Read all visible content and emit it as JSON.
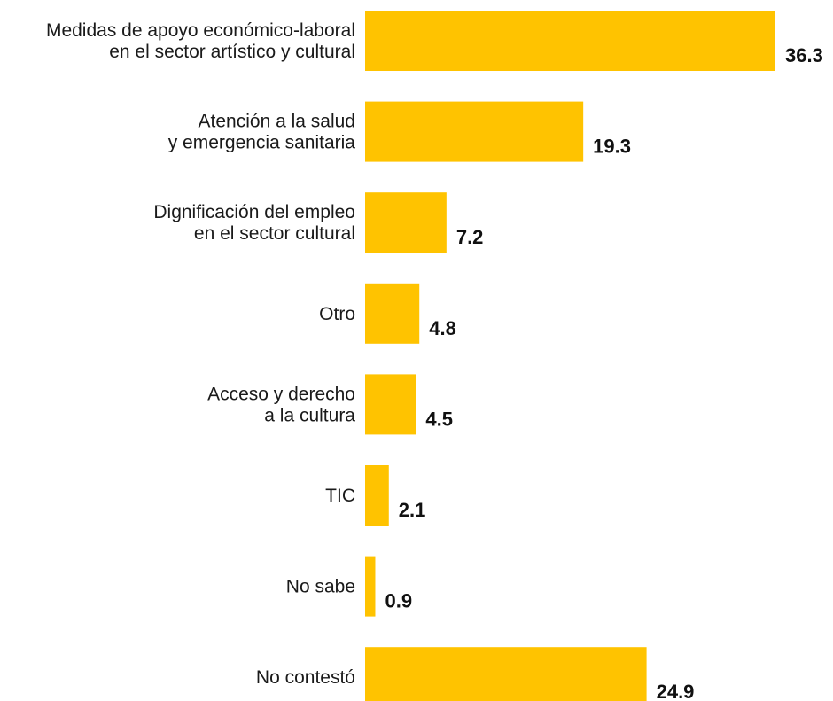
{
  "chart_data": {
    "type": "bar",
    "orientation": "horizontal",
    "categories": [
      [
        "Medidas de apoyo económico-laboral",
        "en el sector artístico y cultural"
      ],
      [
        "Atención a la salud",
        "y emergencia sanitaria"
      ],
      [
        "Dignificación del empleo",
        "en el sector cultural"
      ],
      [
        "Otro"
      ],
      [
        "Acceso y derecho",
        "a la cultura"
      ],
      [
        "TIC"
      ],
      [
        "No sabe"
      ],
      [
        "No contestó"
      ]
    ],
    "values": [
      36.3,
      19.3,
      7.2,
      4.8,
      4.5,
      2.1,
      0.9,
      24.9
    ],
    "value_labels": [
      "36.3",
      "19.3",
      "7.2",
      "4.8",
      "4.5",
      "2.1",
      "0.9",
      "24.9"
    ],
    "bar_color": "#FFC300",
    "xlim": [
      0,
      36.3
    ],
    "grid": false,
    "legend": "none",
    "title": "",
    "xlabel": "",
    "ylabel": ""
  }
}
